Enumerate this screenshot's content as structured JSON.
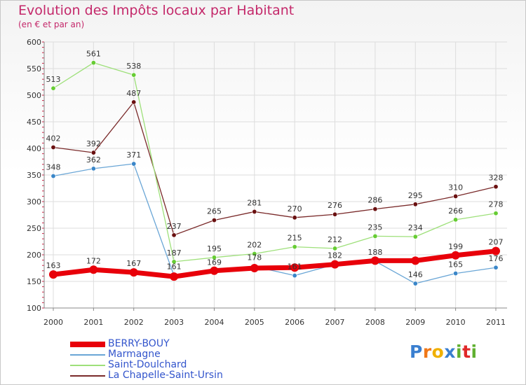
{
  "chart_data": {
    "type": "line",
    "title": "Evolution des Impôts locaux par Habitant",
    "subtitle": "(en € et par an)",
    "xlabel": "",
    "ylabel": "",
    "x": [
      "2000",
      "2001",
      "2002",
      "2003",
      "2004",
      "2005",
      "2006",
      "2007",
      "2008",
      "2009",
      "2010",
      "2011"
    ],
    "ylim": [
      100,
      600
    ],
    "yticks": [
      "100",
      "150",
      "200",
      "250",
      "300",
      "350",
      "400",
      "450",
      "500",
      "550",
      "600"
    ],
    "grid": true,
    "legend_position": "bottom-left",
    "series": [
      {
        "name": "BERRY-BOUY",
        "color": "#e8000a",
        "marker": "#e8000a",
        "values": [
          163,
          172,
          167,
          159,
          170,
          175,
          176,
          182,
          189,
          189,
          199,
          207
        ],
        "labels": [
          "163",
          "172",
          "167",
          "",
          "",
          "",
          "",
          "",
          "",
          "",
          "199",
          "207"
        ]
      },
      {
        "name": "Marmagne",
        "color": "#6aa6d6",
        "marker": "#3a86c8",
        "values": [
          348,
          362,
          371,
          161,
          169,
          178,
          161,
          182,
          188,
          146,
          165,
          176
        ],
        "labels": [
          "348",
          "362",
          "371",
          "161",
          "169",
          "178",
          "161",
          "182",
          "188",
          "146",
          "165",
          "176"
        ]
      },
      {
        "name": "Saint-Doulchard",
        "color": "#9ee07a",
        "marker": "#66cc33",
        "values": [
          513,
          561,
          538,
          187,
          195,
          202,
          215,
          212,
          235,
          234,
          266,
          278
        ],
        "labels": [
          "513",
          "561",
          "538",
          "187",
          "195",
          "202",
          "215",
          "212",
          "235",
          "234",
          "266",
          "278"
        ]
      },
      {
        "name": "La Chapelle-Saint-Ursin",
        "color": "#7a2a2a",
        "marker": "#6a1010",
        "values": [
          402,
          392,
          487,
          237,
          265,
          281,
          270,
          276,
          286,
          295,
          310,
          328
        ],
        "labels": [
          "402",
          "392",
          "487",
          "237",
          "265",
          "281",
          "270",
          "276",
          "286",
          "295",
          "310",
          "328"
        ]
      }
    ]
  },
  "brand": {
    "letters": [
      "P",
      "r",
      "o",
      "x",
      "i",
      "t",
      "i"
    ],
    "colors": [
      "#3a7fd0",
      "#f07818",
      "#f0b000",
      "#3a7fd0",
      "#60b030",
      "#e02828",
      "#60b030"
    ]
  }
}
